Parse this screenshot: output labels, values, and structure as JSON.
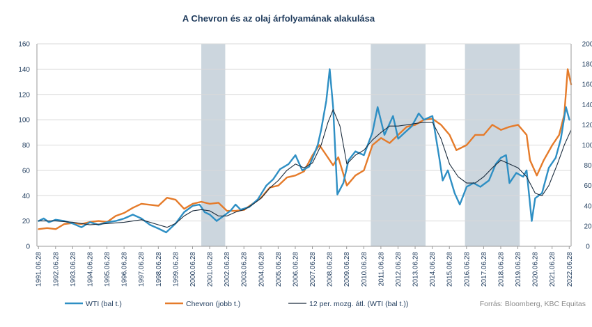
{
  "chart_data": {
    "type": "line",
    "title": "A Chevron és az olaj árfolyamának alakulása",
    "source": "Forrás: Bloomberg, KBC Equitas",
    "x_ticks": [
      "1991.06.28",
      "1992.06.28",
      "1993.06.28",
      "1994.06.28",
      "1995.06.28",
      "1996.06.28",
      "1997.06.28",
      "1998.06.28",
      "1999.06.28",
      "2000.06.28",
      "2001.06.28",
      "2002.06.28",
      "2003.06.28",
      "2004.06.28",
      "2005.06.28",
      "2006.06.28",
      "2007.06.28",
      "2008.06.28",
      "2009.06.28",
      "2010.06.28",
      "2011.06.28",
      "2012.06.28",
      "2013.06.28",
      "2014.06.28",
      "2015.06.28",
      "2016.06.28",
      "2017.06.28",
      "2018.06.28",
      "2019.06.28",
      "2020.06.28",
      "2021.06.28",
      "2022.06.28"
    ],
    "x_range": [
      1991.4,
      2022.6
    ],
    "y_left": {
      "min": 0,
      "max": 160,
      "step": 20,
      "ticks": [
        "0",
        "20",
        "40",
        "60",
        "80",
        "100",
        "120",
        "140",
        "160"
      ]
    },
    "y_right": {
      "min": 0,
      "max": 200,
      "step": 20,
      "ticks": [
        "0",
        "20",
        "40",
        "60",
        "80",
        "100",
        "120",
        "140",
        "160",
        "180",
        "200"
      ]
    },
    "grid": true,
    "legend_position": "bottom",
    "shaded_periods": [
      [
        2001.0,
        2002.4
      ],
      [
        2010.9,
        2014.1
      ],
      [
        2016.4,
        2019.6
      ]
    ],
    "series": [
      {
        "name": "WTI (bal t.)",
        "axis": "left",
        "color": "#2e8fc4",
        "x": [
          1991.5,
          1991.8,
          1992.1,
          1992.5,
          1993.0,
          1993.5,
          1994.0,
          1994.5,
          1995.0,
          1995.5,
          1996.0,
          1996.5,
          1997.0,
          1997.5,
          1998.0,
          1998.5,
          1998.95,
          1999.5,
          2000.0,
          2000.5,
          2000.9,
          2001.2,
          2001.5,
          2001.9,
          2002.3,
          2002.7,
          2003.0,
          2003.3,
          2003.8,
          2004.3,
          2004.8,
          2005.2,
          2005.6,
          2006.1,
          2006.5,
          2006.9,
          2007.3,
          2007.8,
          2008.0,
          2008.3,
          2008.5,
          2008.7,
          2008.95,
          2009.3,
          2009.6,
          2010.0,
          2010.5,
          2011.0,
          2011.3,
          2011.7,
          2012.2,
          2012.5,
          2012.9,
          2013.3,
          2013.7,
          2014.0,
          2014.5,
          2014.9,
          2015.1,
          2015.4,
          2015.8,
          2016.1,
          2016.5,
          2016.9,
          2017.3,
          2017.8,
          2018.2,
          2018.5,
          2018.8,
          2019.0,
          2019.4,
          2019.8,
          2020.0,
          2020.3,
          2020.5,
          2020.9,
          2021.3,
          2021.7,
          2022.0,
          2022.3,
          2022.5
        ],
        "y": [
          20,
          22,
          19,
          21,
          20,
          18,
          15,
          19,
          17,
          19,
          20,
          22,
          25,
          22,
          17,
          14,
          11,
          18,
          27,
          32,
          33,
          27,
          25,
          20,
          24,
          28,
          33,
          29,
          31,
          37,
          48,
          53,
          61,
          65,
          72,
          60,
          63,
          80,
          92,
          115,
          140,
          110,
          41,
          50,
          68,
          75,
          72,
          90,
          110,
          88,
          103,
          85,
          90,
          95,
          105,
          100,
          103,
          70,
          52,
          60,
          42,
          33,
          47,
          50,
          47,
          52,
          65,
          70,
          72,
          50,
          58,
          55,
          60,
          20,
          38,
          42,
          62,
          70,
          85,
          110,
          100
        ]
      },
      {
        "name": "Chevron (jobb t.)",
        "axis": "right",
        "color": "#e57b2a",
        "x": [
          1991.5,
          1992.0,
          1992.5,
          1993.0,
          1993.5,
          1994.0,
          1994.5,
          1995.0,
          1995.5,
          1996.0,
          1996.5,
          1997.0,
          1997.5,
          1998.0,
          1998.5,
          1999.0,
          1999.5,
          2000.0,
          2000.5,
          2001.0,
          2001.5,
          2002.0,
          2002.5,
          2003.0,
          2003.5,
          2004.0,
          2004.5,
          2005.0,
          2005.5,
          2006.0,
          2006.5,
          2007.0,
          2007.5,
          2007.9,
          2008.3,
          2008.7,
          2009.0,
          2009.5,
          2010.0,
          2010.5,
          2011.0,
          2011.5,
          2012.0,
          2012.5,
          2013.0,
          2013.5,
          2014.0,
          2014.5,
          2015.0,
          2015.5,
          2015.9,
          2016.5,
          2017.0,
          2017.5,
          2018.0,
          2018.5,
          2019.0,
          2019.5,
          2020.0,
          2020.2,
          2020.6,
          2021.0,
          2021.5,
          2021.9,
          2022.2,
          2022.4,
          2022.6
        ],
        "y": [
          17,
          18,
          17,
          22,
          23,
          22,
          24,
          25,
          24,
          30,
          33,
          38,
          42,
          41,
          40,
          48,
          46,
          37,
          42,
          44,
          42,
          43,
          35,
          35,
          36,
          42,
          48,
          58,
          60,
          68,
          70,
          74,
          90,
          100,
          90,
          80,
          88,
          60,
          70,
          75,
          100,
          107,
          102,
          110,
          118,
          120,
          125,
          126,
          120,
          110,
          95,
          100,
          110,
          110,
          120,
          115,
          118,
          120,
          110,
          85,
          70,
          85,
          100,
          110,
          130,
          175,
          160
        ]
      },
      {
        "name": "12 per. mozg. átl. (WTI (bal t.))",
        "axis": "left",
        "color": "#1a2b3c",
        "x": [
          1991.5,
          1992.5,
          1993.5,
          1994.5,
          1995.5,
          1996.5,
          1997.5,
          1998.5,
          1999.0,
          1999.5,
          2000.0,
          2000.5,
          2001.0,
          2001.5,
          2002.0,
          2002.5,
          2003.0,
          2003.5,
          2004.0,
          2004.5,
          2005.0,
          2005.5,
          2006.0,
          2006.5,
          2007.0,
          2007.5,
          2008.0,
          2008.4,
          2008.7,
          2009.1,
          2009.5,
          2010.0,
          2010.5,
          2011.0,
          2011.5,
          2012.0,
          2012.5,
          2013.0,
          2013.5,
          2014.0,
          2014.5,
          2015.0,
          2015.5,
          2016.0,
          2016.5,
          2017.0,
          2017.5,
          2018.0,
          2018.5,
          2019.0,
          2019.5,
          2020.0,
          2020.5,
          2020.9,
          2021.3,
          2021.8,
          2022.2,
          2022.6
        ],
        "y": [
          20,
          20,
          19,
          17,
          18,
          19,
          21,
          17,
          15,
          18,
          24,
          28,
          29,
          28,
          24,
          24,
          27,
          29,
          33,
          38,
          46,
          52,
          60,
          65,
          62,
          66,
          80,
          98,
          108,
          95,
          65,
          72,
          76,
          84,
          90,
          95,
          95,
          96,
          97,
          98,
          98,
          85,
          65,
          55,
          50,
          50,
          55,
          62,
          68,
          65,
          62,
          55,
          42,
          40,
          48,
          65,
          80,
          92
        ]
      }
    ]
  }
}
